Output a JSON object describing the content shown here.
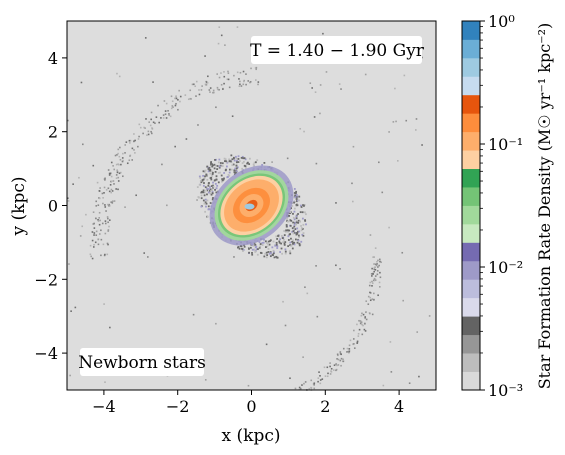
{
  "chart_data": {
    "type": "heatmap",
    "xlabel": "x (kpc)",
    "ylabel": "y (kpc)",
    "xlim": [
      -5,
      5
    ],
    "ylim": [
      -5,
      5
    ],
    "xticks": [
      -4,
      -2,
      0,
      2,
      4
    ],
    "yticks": [
      -4,
      -2,
      0,
      2,
      4
    ],
    "xtick_labels": [
      "−4",
      "−2",
      "0",
      "2",
      "4"
    ],
    "ytick_labels": [
      "−4",
      "−2",
      "0",
      "2",
      "4"
    ],
    "annotations": {
      "time": "T = 1.40 − 1.90 Gyr",
      "panel": "Newborn stars"
    },
    "background_color": "#dddddd",
    "colorbar": {
      "label": "Star Formation Rate Density (M☉ yr⁻¹ kpc⁻²)",
      "scale": "log",
      "range": [
        0.001,
        1
      ],
      "tick_values": [
        0.001,
        0.01,
        0.1,
        1
      ],
      "tick_labels": [
        "10⁻³",
        "10⁻²",
        "10⁻¹",
        "10⁰"
      ],
      "colors": [
        "#d9d9d9",
        "#bdbdbd",
        "#969696",
        "#636363",
        "#dadaeb",
        "#bcbddc",
        "#9e9ac8",
        "#756bb1",
        "#c7e9c0",
        "#a1d99b",
        "#74c476",
        "#31a354",
        "#fdd0a2",
        "#fdae6b",
        "#fd8d3c",
        "#e6550d",
        "#c6dbef",
        "#9ecae1",
        "#6baed6",
        "#3182bd"
      ]
    },
    "regions": [
      {
        "name": "central disk",
        "center": [
          0,
          0
        ],
        "radius_kpc": [
          1.6,
          1.1
        ],
        "sfr_density": [
          0.001,
          0.01
        ]
      },
      {
        "name": "ring",
        "center": [
          0,
          0
        ],
        "radius_kpc": [
          1.1,
          0.8
        ],
        "sfr_density": [
          0.01,
          0.05
        ]
      },
      {
        "name": "core",
        "center": [
          0,
          0
        ],
        "radius_kpc": [
          0.9,
          0.6
        ],
        "sfr_density": [
          0.05,
          0.5
        ]
      }
    ]
  }
}
